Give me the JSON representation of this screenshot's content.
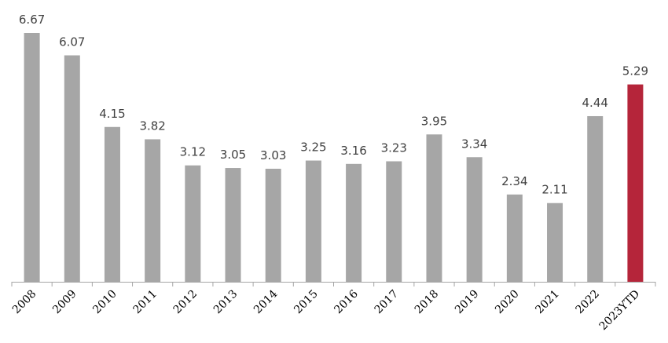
{
  "chart_data": {
    "type": "bar",
    "categories": [
      "2008",
      "2009",
      "2010",
      "2011",
      "2012",
      "2013",
      "2014",
      "2015",
      "2016",
      "2017",
      "2018",
      "2019",
      "2020",
      "2021",
      "2022",
      "2023YTD"
    ],
    "values": [
      6.67,
      6.07,
      4.15,
      3.82,
      3.12,
      3.05,
      3.03,
      3.25,
      3.16,
      3.23,
      3.95,
      3.34,
      2.34,
      2.11,
      4.44,
      5.29
    ],
    "value_labels": [
      "6.67",
      "6.07",
      "4.15",
      "3.82",
      "3.12",
      "3.05",
      "3.03",
      "3.25",
      "3.16",
      "3.23",
      "3.95",
      "3.34",
      "2.34",
      "2.11",
      "4.44",
      "5.29"
    ],
    "title": "",
    "xlabel": "",
    "ylabel": "",
    "ylim": [
      0,
      6.67
    ],
    "grid": false,
    "legend": "none",
    "colors": {
      "default_bar": "#a6a6a6",
      "highlight_bar": "#b5253a",
      "axis": "#a6a6a6"
    },
    "highlight_category": "2023YTD"
  }
}
